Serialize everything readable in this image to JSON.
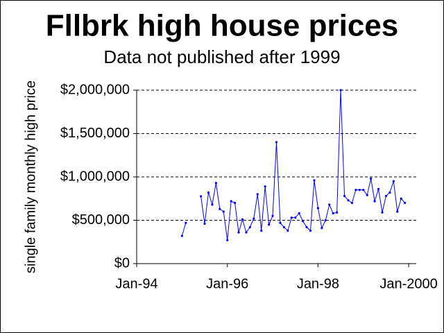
{
  "chart_data": {
    "type": "line",
    "title": "Fllbrk high house prices",
    "subtitle": "Data not published after 1999",
    "ylabel": "single family monthly high price",
    "x": [
      "1995-01",
      "1995-02",
      "1995-03",
      "1995-04",
      "1995-05",
      "1995-06",
      "1995-07",
      "1995-08",
      "1995-09",
      "1995-10",
      "1995-11",
      "1995-12",
      "1996-01",
      "1996-02",
      "1996-03",
      "1996-04",
      "1996-05",
      "1996-06",
      "1996-07",
      "1996-08",
      "1996-09",
      "1996-10",
      "1996-11",
      "1996-12",
      "1997-01",
      "1997-02",
      "1997-03",
      "1997-04",
      "1997-05",
      "1997-06",
      "1997-07",
      "1997-08",
      "1997-09",
      "1997-10",
      "1997-11",
      "1997-12",
      "1998-01",
      "1998-02",
      "1998-03",
      "1998-04",
      "1998-05",
      "1998-06",
      "1998-07",
      "1998-08",
      "1998-09",
      "1998-10",
      "1998-11",
      "1998-12",
      "1999-01",
      "1999-02",
      "1999-03",
      "1999-04",
      "1999-05",
      "1999-06",
      "1999-07",
      "1999-08",
      "1999-09",
      "1999-10",
      "1999-11",
      "1999-12"
    ],
    "series": [
      {
        "color": "#0000ff",
        "values": [
          320000,
          470000,
          null,
          null,
          null,
          776000,
          460000,
          820000,
          680000,
          930000,
          630000,
          600000,
          270000,
          720000,
          700000,
          360000,
          510000,
          360000,
          420000,
          520000,
          800000,
          380000,
          890000,
          450000,
          550000,
          1400000,
          470000,
          420000,
          380000,
          530000,
          530000,
          580000,
          490000,
          420000,
          380000,
          960000,
          640000,
          410000,
          500000,
          680000,
          580000,
          590000,
          2000000,
          780000,
          730000,
          700000,
          850000,
          850000,
          850000,
          790000,
          980000,
          720000,
          860000,
          590000,
          780000,
          820000,
          950000,
          600000,
          750000,
          700000
        ]
      }
    ],
    "xlim": [
      "1994-01",
      "2000-03"
    ],
    "xticks": [
      {
        "value": "1994-01",
        "label": "Jan-94"
      },
      {
        "value": "1996-01",
        "label": "Jan-96"
      },
      {
        "value": "1998-01",
        "label": "Jan-98"
      },
      {
        "value": "2000-01",
        "label": "Jan-2000"
      }
    ],
    "ylim": [
      0,
      2000000
    ],
    "yticks": [
      {
        "value": 0,
        "label": "$0"
      },
      {
        "value": 500000,
        "label": "$500,000"
      },
      {
        "value": 1000000,
        "label": "$1,000,000"
      },
      {
        "value": 1500000,
        "label": "$1,500,000"
      },
      {
        "value": 2000000,
        "label": "$2,000,000"
      }
    ],
    "grid": true
  }
}
